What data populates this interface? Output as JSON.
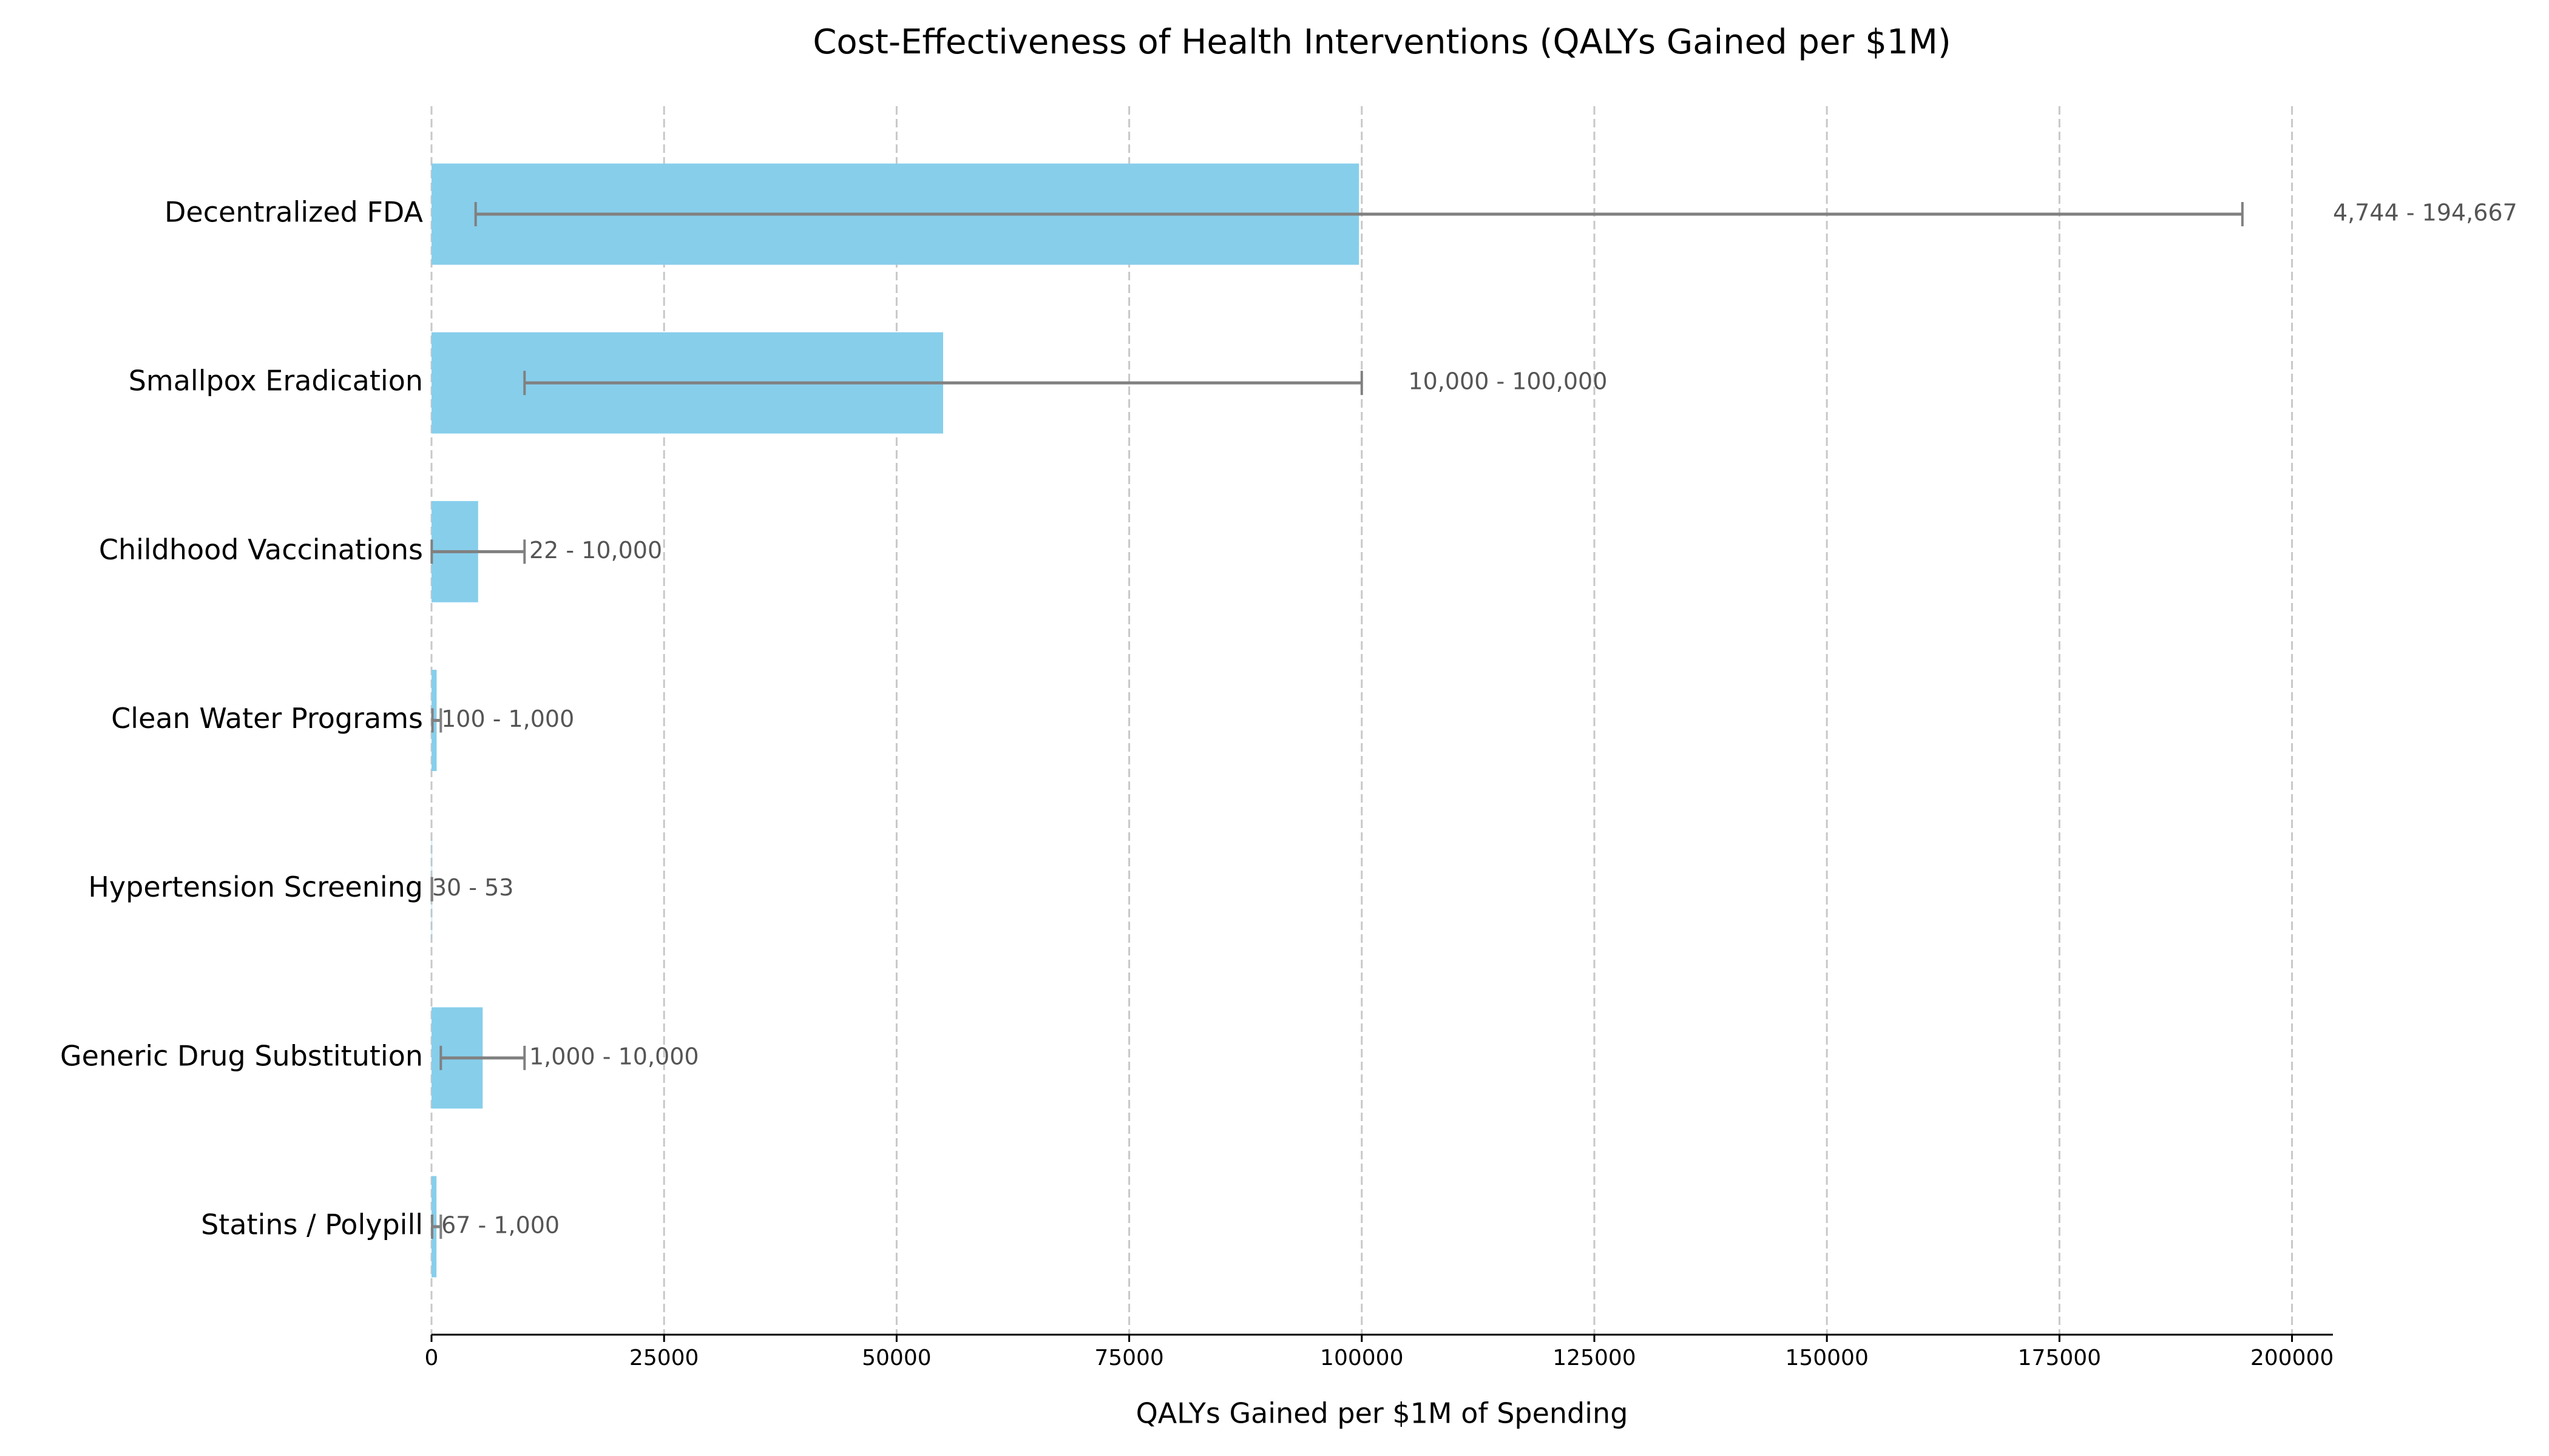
{
  "chart_data": {
    "type": "bar",
    "orientation": "horizontal",
    "title": "Cost-Effectiveness of Health Interventions (QALYs Gained per $1M)",
    "x_label": "QALYs Gained per $1M of Spending",
    "categories": [
      "Decentralized FDA",
      "Smallpox Eradication",
      "Childhood Vaccinations",
      "Clean Water Programs",
      "Hypertension Screening",
      "Generic Drug Substitution",
      "Statins / Polypill"
    ],
    "values": [
      99705.5,
      55000,
      5011,
      550,
      41.5,
      5500,
      533.5
    ],
    "low": [
      4744,
      10000,
      22,
      100,
      30,
      1000,
      67
    ],
    "high": [
      194667,
      100000,
      10000,
      1000,
      53,
      10000,
      1000
    ],
    "range_labels": [
      "4,744 - 194,667",
      "10,000 - 100,000",
      "22 - 10,000",
      "100 - 1,000",
      "30 - 53",
      "1,000 - 10,000",
      "67 - 1,000"
    ],
    "color": "#87ceeb",
    "error_color": "#808080",
    "xlim": [
      0,
      204400
    ],
    "xticks": [
      0,
      25000,
      50000,
      75000,
      100000,
      125000,
      150000,
      175000,
      200000
    ],
    "grid": true
  }
}
